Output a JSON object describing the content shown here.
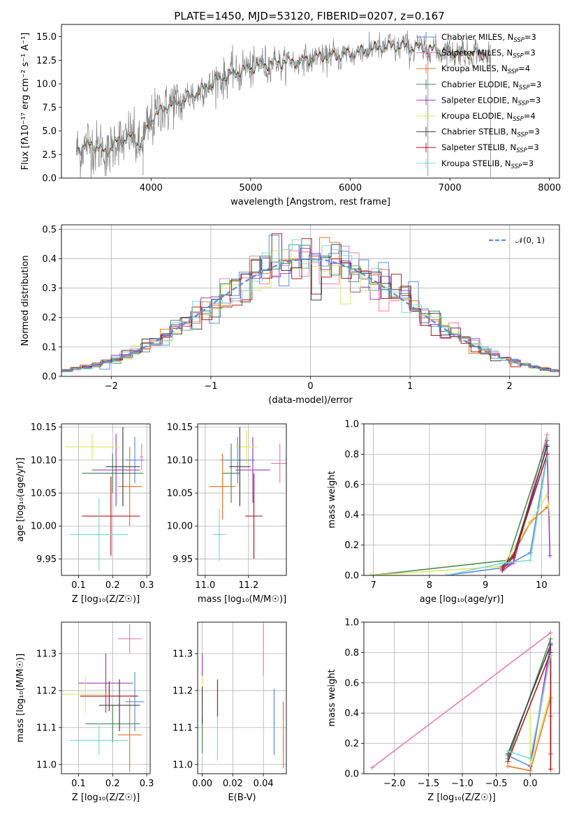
{
  "figure": {
    "title": "PLATE=1450, MJD=53120, FIBERID=0207, z=0.167"
  },
  "colors": {
    "Chabrier MILES": "#5b8fd9",
    "Salpeter MILES": "#e87fb0",
    "Kroupa MILES": "#e8772a",
    "Chabrier ELODIE": "#4e8a5a",
    "Salpeter ELODIE": "#9a3fbf",
    "Kroupa ELODIE": "#d9e86a",
    "Chabrier STELIB": "#404040",
    "Salpeter STELIB": "#b01c1c",
    "Kroupa STELIB": "#7fd9d9",
    "data": "#808080",
    "gaussian": "#5b8fd9"
  },
  "chart_data": [
    {
      "id": "spectrum",
      "type": "line",
      "title": "PLATE=1450, MJD=53120, FIBERID=0207, z=0.167",
      "xlabel": "wavelength [Angstrom, rest frame]",
      "ylabel": "Flux [fλ10⁻¹⁷ erg cm⁻² s⁻¹ A⁻¹]",
      "xlim": [
        3100,
        8100
      ],
      "ylim": [
        0,
        16.3
      ],
      "xticks": [
        4000,
        5000,
        6000,
        7000,
        8000
      ],
      "yticks": [
        0.0,
        2.5,
        5.0,
        7.5,
        10.0,
        12.5,
        15.0
      ],
      "legend_placement": "top-right",
      "legend": [
        {
          "name": "Chabrier MILES, N",
          "sub": "SSP",
          "suffix": "=3"
        },
        {
          "name": "Salpeter MILES, N",
          "sub": "SSP",
          "suffix": "=3"
        },
        {
          "name": "Kroupa MILES, N",
          "sub": "SSP",
          "suffix": "=4"
        },
        {
          "name": "Chabrier ELODIE, N",
          "sub": "SSP",
          "suffix": "=3"
        },
        {
          "name": "Salpeter ELODIE, N",
          "sub": "SSP",
          "suffix": "=3"
        },
        {
          "name": "Kroupa ELODIE, N",
          "sub": "SSP",
          "suffix": "=4"
        },
        {
          "name": "Chabrier STELIB, N",
          "sub": "SSP",
          "suffix": "=3"
        },
        {
          "name": "Salpeter STELIB, N",
          "sub": "SSP",
          "suffix": "=3"
        },
        {
          "name": "Kroupa STELIB, N",
          "sub": "SSP",
          "suffix": "=3"
        }
      ],
      "continuum": [
        [
          3250,
          3.0
        ],
        [
          3400,
          3.6
        ],
        [
          3550,
          2.7
        ],
        [
          3650,
          3.8
        ],
        [
          3800,
          4.4
        ],
        [
          3900,
          3.4
        ],
        [
          4000,
          6.2
        ],
        [
          4150,
          7.6
        ],
        [
          4300,
          8.1
        ],
        [
          4500,
          9.3
        ],
        [
          4700,
          10.6
        ],
        [
          4900,
          11.4
        ],
        [
          5100,
          12.0
        ],
        [
          5300,
          12.3
        ],
        [
          5500,
          12.4
        ],
        [
          5700,
          12.9
        ],
        [
          5900,
          13.0
        ],
        [
          6100,
          13.4
        ],
        [
          6300,
          13.9
        ],
        [
          6500,
          14.0
        ],
        [
          6700,
          13.8
        ],
        [
          6900,
          13.5
        ],
        [
          7100,
          13.3
        ],
        [
          7300,
          13.2
        ],
        [
          7400,
          12.9
        ]
      ],
      "dips": [
        [
          3550,
          0.2
        ],
        [
          3920,
          0.3
        ],
        [
          6780,
          0.2
        ],
        [
          7410,
          0.1
        ]
      ]
    },
    {
      "id": "residuals",
      "type": "area",
      "xlabel": "(data-model)/error",
      "ylabel": "Normed distribution",
      "xlim": [
        -2.5,
        2.5
      ],
      "ylim": [
        0,
        0.515
      ],
      "xticks": [
        -2,
        -1,
        0,
        1,
        2
      ],
      "yticks": [
        0.0,
        0.1,
        0.2,
        0.3,
        0.4,
        0.5
      ],
      "grid": true,
      "bin_width": 0.1,
      "reference": "𝒩(0, 1)",
      "legend_placement": "top-right"
    },
    {
      "id": "age-vs-Z",
      "type": "scatter",
      "xlabel": "Z [log₁₀(Z/Z☉)]",
      "ylabel": "age  [log₁₀(age/yr)]",
      "xlim": [
        0.05,
        0.31
      ],
      "ylim": [
        9.925,
        10.155
      ],
      "xticks": [
        0.1,
        0.2,
        0.3
      ],
      "yticks": [
        9.95,
        10.0,
        10.05,
        10.1,
        10.15
      ],
      "grid": true,
      "points": [
        {
          "series": "Chabrier MILES",
          "x": 0.265,
          "xerr": 0.028,
          "y": 10.1,
          "yerr": 0.035
        },
        {
          "series": "Salpeter MILES",
          "x": 0.285,
          "xerr": 0.005,
          "y": 10.105,
          "yerr": 0.02
        },
        {
          "series": "Kroupa MILES",
          "x": 0.25,
          "xerr": 0.035,
          "y": 10.06,
          "yerr": 0.06
        },
        {
          "series": "Chabrier ELODIE",
          "x": 0.2,
          "xerr": 0.09,
          "y": 10.08,
          "yerr": 0.03
        },
        {
          "series": "Salpeter ELODIE",
          "x": 0.21,
          "xerr": 0.07,
          "y": 10.085,
          "yerr": 0.055
        },
        {
          "series": "Kroupa ELODIE",
          "x": 0.14,
          "xerr": 0.08,
          "y": 10.12,
          "yerr": 0.02
        },
        {
          "series": "Chabrier STELIB",
          "x": 0.23,
          "xerr": 0.05,
          "y": 10.09,
          "yerr": 0.06
        },
        {
          "series": "Salpeter STELIB",
          "x": 0.195,
          "xerr": 0.085,
          "y": 10.015,
          "yerr": 0.06
        },
        {
          "series": "Kroupa STELIB",
          "x": 0.16,
          "xerr": 0.085,
          "y": 9.987,
          "yerr": 0.055
        }
      ]
    },
    {
      "id": "age-vs-mass",
      "type": "scatter",
      "xlabel": "mass [log₁₀(M/M☉)]",
      "xlim": [
        10.965,
        11.375
      ],
      "ylim": [
        9.925,
        10.155
      ],
      "xticks": [
        11.0,
        11.2
      ],
      "yticks": [
        9.95,
        10.0,
        10.05,
        10.1,
        10.15
      ],
      "grid": true,
      "points": [
        {
          "series": "Chabrier MILES",
          "x": 11.15,
          "xerr": 0.08,
          "y": 10.1,
          "yerr": 0.035
        },
        {
          "series": "Salpeter MILES",
          "x": 11.345,
          "xerr": 0.04,
          "y": 10.095,
          "yerr": 0.03
        },
        {
          "series": "Kroupa MILES",
          "x": 11.08,
          "xerr": 0.06,
          "y": 10.06,
          "yerr": 0.05
        },
        {
          "series": "Chabrier ELODIE",
          "x": 11.12,
          "xerr": 0.04,
          "y": 10.08,
          "yerr": 0.045
        },
        {
          "series": "Salpeter ELODIE",
          "x": 11.22,
          "xerr": 0.08,
          "y": 10.085,
          "yerr": 0.05
        },
        {
          "series": "Kroupa ELODIE",
          "x": 11.19,
          "xerr": 0.05,
          "y": 10.12,
          "yerr": 0.025
        },
        {
          "series": "Chabrier STELIB",
          "x": 11.16,
          "xerr": 0.05,
          "y": 10.09,
          "yerr": 0.06
        },
        {
          "series": "Salpeter STELIB",
          "x": 11.225,
          "xerr": 0.04,
          "y": 10.015,
          "yerr": 0.065
        },
        {
          "series": "Kroupa STELIB",
          "x": 11.065,
          "xerr": 0.03,
          "y": 9.987,
          "yerr": 0.04
        }
      ]
    },
    {
      "id": "mass-weight-vs-age",
      "type": "line",
      "xlabel": "age  [log₁₀(age/yr)]",
      "ylabel": "mass weight",
      "xlim": [
        6.83,
        10.32
      ],
      "ylim": [
        0,
        1.0
      ],
      "xticks": [
        7,
        8,
        9,
        10
      ],
      "yticks": [
        0.0,
        0.2,
        0.4,
        0.6,
        0.8,
        1.0
      ],
      "grid": true,
      "series": [
        {
          "name": "Chabrier MILES",
          "points": [
            [
              8.3,
              0.0
            ],
            [
              9.3,
              0.05
            ],
            [
              9.8,
              0.15
            ],
            [
              10.1,
              0.8
            ]
          ]
        },
        {
          "name": "Salpeter MILES",
          "points": [
            [
              9.3,
              0.03
            ],
            [
              9.5,
              0.08
            ],
            [
              10.1,
              0.93
            ]
          ]
        },
        {
          "name": "Kroupa MILES",
          "points": [
            [
              9.3,
              0.05
            ],
            [
              9.5,
              0.14
            ],
            [
              9.8,
              0.35
            ],
            [
              10.1,
              0.45
            ]
          ]
        },
        {
          "name": "Chabrier ELODIE",
          "points": [
            [
              6.95,
              0.0
            ],
            [
              9.4,
              0.1
            ],
            [
              10.1,
              0.89
            ]
          ]
        },
        {
          "name": "Salpeter ELODIE",
          "points": [
            [
              9.3,
              0.03
            ],
            [
              9.5,
              0.09
            ],
            [
              10.1,
              0.86
            ],
            [
              10.15,
              0.13
            ]
          ]
        },
        {
          "name": "Kroupa ELODIE",
          "points": [
            [
              6.95,
              0.0
            ],
            [
              9.3,
              0.06
            ],
            [
              10.1,
              0.53
            ],
            [
              10.15,
              0.4
            ]
          ]
        },
        {
          "name": "Chabrier STELIB",
          "points": [
            [
              9.3,
              0.06
            ],
            [
              9.5,
              0.13
            ],
            [
              10.1,
              0.85
            ]
          ]
        },
        {
          "name": "Salpeter STELIB",
          "points": [
            [
              9.3,
              0.04
            ],
            [
              9.5,
              0.12
            ],
            [
              10.1,
              0.8
            ]
          ]
        },
        {
          "name": "Kroupa STELIB",
          "points": [
            [
              8.3,
              0.0
            ],
            [
              9.3,
              0.08
            ],
            [
              9.8,
              0.1
            ],
            [
              10.1,
              0.78
            ]
          ]
        }
      ]
    },
    {
      "id": "mass-vs-Z",
      "type": "scatter",
      "xlabel": "Z [log₁₀(Z/Z☉)]",
      "ylabel": "mass [log₁₀(M/M☉)]",
      "xlim": [
        0.05,
        0.31
      ],
      "ylim": [
        10.975,
        11.385
      ],
      "xticks": [
        0.1,
        0.2,
        0.3
      ],
      "yticks": [
        11.0,
        11.1,
        11.2,
        11.3
      ],
      "grid": true,
      "points": [
        {
          "series": "Chabrier MILES",
          "x": 0.265,
          "xerr": 0.028,
          "y": 11.17,
          "yerr": 0.08
        },
        {
          "series": "Salpeter MILES",
          "x": 0.25,
          "xerr": 0.035,
          "y": 11.34,
          "yerr": 0.04
        },
        {
          "series": "Kroupa MILES",
          "x": 0.25,
          "xerr": 0.035,
          "y": 11.08,
          "yerr": 0.1
        },
        {
          "series": "Chabrier ELODIE",
          "x": 0.2,
          "xerr": 0.08,
          "y": 11.11,
          "yerr": 0.05
        },
        {
          "series": "Salpeter ELODIE",
          "x": 0.18,
          "xerr": 0.08,
          "y": 11.22,
          "yerr": 0.08
        },
        {
          "series": "Kroupa ELODIE",
          "x": 0.12,
          "xerr": 0.07,
          "y": 11.19,
          "yerr": 0.05
        },
        {
          "series": "Chabrier STELIB",
          "x": 0.22,
          "xerr": 0.06,
          "y": 11.16,
          "yerr": 0.07
        },
        {
          "series": "Salpeter STELIB",
          "x": 0.19,
          "xerr": 0.085,
          "y": 11.185,
          "yerr": 0.04
        },
        {
          "series": "Kroupa STELIB",
          "x": 0.16,
          "xerr": 0.085,
          "y": 11.065,
          "yerr": 0.04
        }
      ]
    },
    {
      "id": "mass-vs-EBV",
      "type": "scatter",
      "xlabel": "E(B-V)",
      "xlim": [
        -0.003,
        0.055
      ],
      "ylim": [
        10.975,
        11.385
      ],
      "xticks": [
        0.0,
        0.02,
        0.04
      ],
      "yticks": [
        11.0,
        11.1,
        11.2,
        11.3
      ],
      "grid": true,
      "points": [
        {
          "series": "Chabrier MILES",
          "x": 0.047,
          "y": 11.115,
          "yerr": 0.09
        },
        {
          "series": "Salpeter MILES",
          "x": 0.04,
          "y": 11.31,
          "yerr": 0.07
        },
        {
          "series": "Kroupa MILES",
          "x": 0.053,
          "y": 11.08,
          "yerr": 0.09
        },
        {
          "series": "Chabrier ELODIE",
          "x": 0.0,
          "y": 11.08,
          "yerr": 0.05
        },
        {
          "series": "Salpeter ELODIE",
          "x": 0.0,
          "y": 11.27,
          "yerr": 0.03
        },
        {
          "series": "Kroupa ELODIE",
          "x": 0.0,
          "y": 11.2,
          "yerr": 0.04
        },
        {
          "series": "Chabrier STELIB",
          "x": 0.0,
          "y": 11.16,
          "yerr": 0.05
        },
        {
          "series": "Salpeter STELIB",
          "x": 0.01,
          "y": 11.18,
          "yerr": 0.05
        },
        {
          "series": "Kroupa STELIB",
          "x": 0.01,
          "y": 11.07,
          "yerr": 0.06
        }
      ]
    },
    {
      "id": "mass-weight-vs-Z",
      "type": "line",
      "xlabel": "Z [log₁₀(Z/Z☉)]",
      "ylabel": "mass weight",
      "xlim": [
        -2.45,
        0.43
      ],
      "ylim": [
        0,
        1.0
      ],
      "xticks": [
        -2.0,
        -1.5,
        -1.0,
        -0.5,
        0.0
      ],
      "yticks": [
        0.0,
        0.2,
        0.4,
        0.6,
        0.8,
        1.0
      ],
      "grid": true,
      "series": [
        {
          "name": "Chabrier MILES",
          "points": [
            [
              -0.33,
              0.12
            ],
            [
              0.0,
              0.05
            ],
            [
              0.3,
              0.8
            ]
          ]
        },
        {
          "name": "Salpeter MILES",
          "points": [
            [
              -2.33,
              0.04
            ],
            [
              0.3,
              0.93
            ]
          ]
        },
        {
          "name": "Kroupa MILES",
          "points": [
            [
              -0.33,
              0.05
            ],
            [
              0.0,
              0.02
            ],
            [
              0.3,
              0.5
            ],
            [
              0.3,
              0.38
            ]
          ]
        },
        {
          "name": "Chabrier ELODIE",
          "points": [
            [
              -0.33,
              0.1
            ],
            [
              0.3,
              0.89
            ]
          ]
        },
        {
          "name": "Salpeter ELODIE",
          "points": [
            [
              0.0,
              0.05
            ],
            [
              0.3,
              0.86
            ],
            [
              0.3,
              0.13
            ]
          ]
        },
        {
          "name": "Kroupa ELODIE",
          "points": [
            [
              0.0,
              0.4
            ],
            [
              0.0,
              0.06
            ],
            [
              0.3,
              0.53
            ]
          ]
        },
        {
          "name": "Chabrier STELIB",
          "points": [
            [
              -0.33,
              0.13
            ],
            [
              0.3,
              0.85
            ]
          ]
        },
        {
          "name": "Salpeter STELIB",
          "points": [
            [
              -0.33,
              0.08
            ],
            [
              0.3,
              0.8
            ],
            [
              0.3,
              0.03
            ]
          ]
        },
        {
          "name": "Kroupa STELIB",
          "points": [
            [
              -0.33,
              0.15
            ],
            [
              0.0,
              0.1
            ],
            [
              0.3,
              0.78
            ]
          ]
        }
      ]
    }
  ]
}
